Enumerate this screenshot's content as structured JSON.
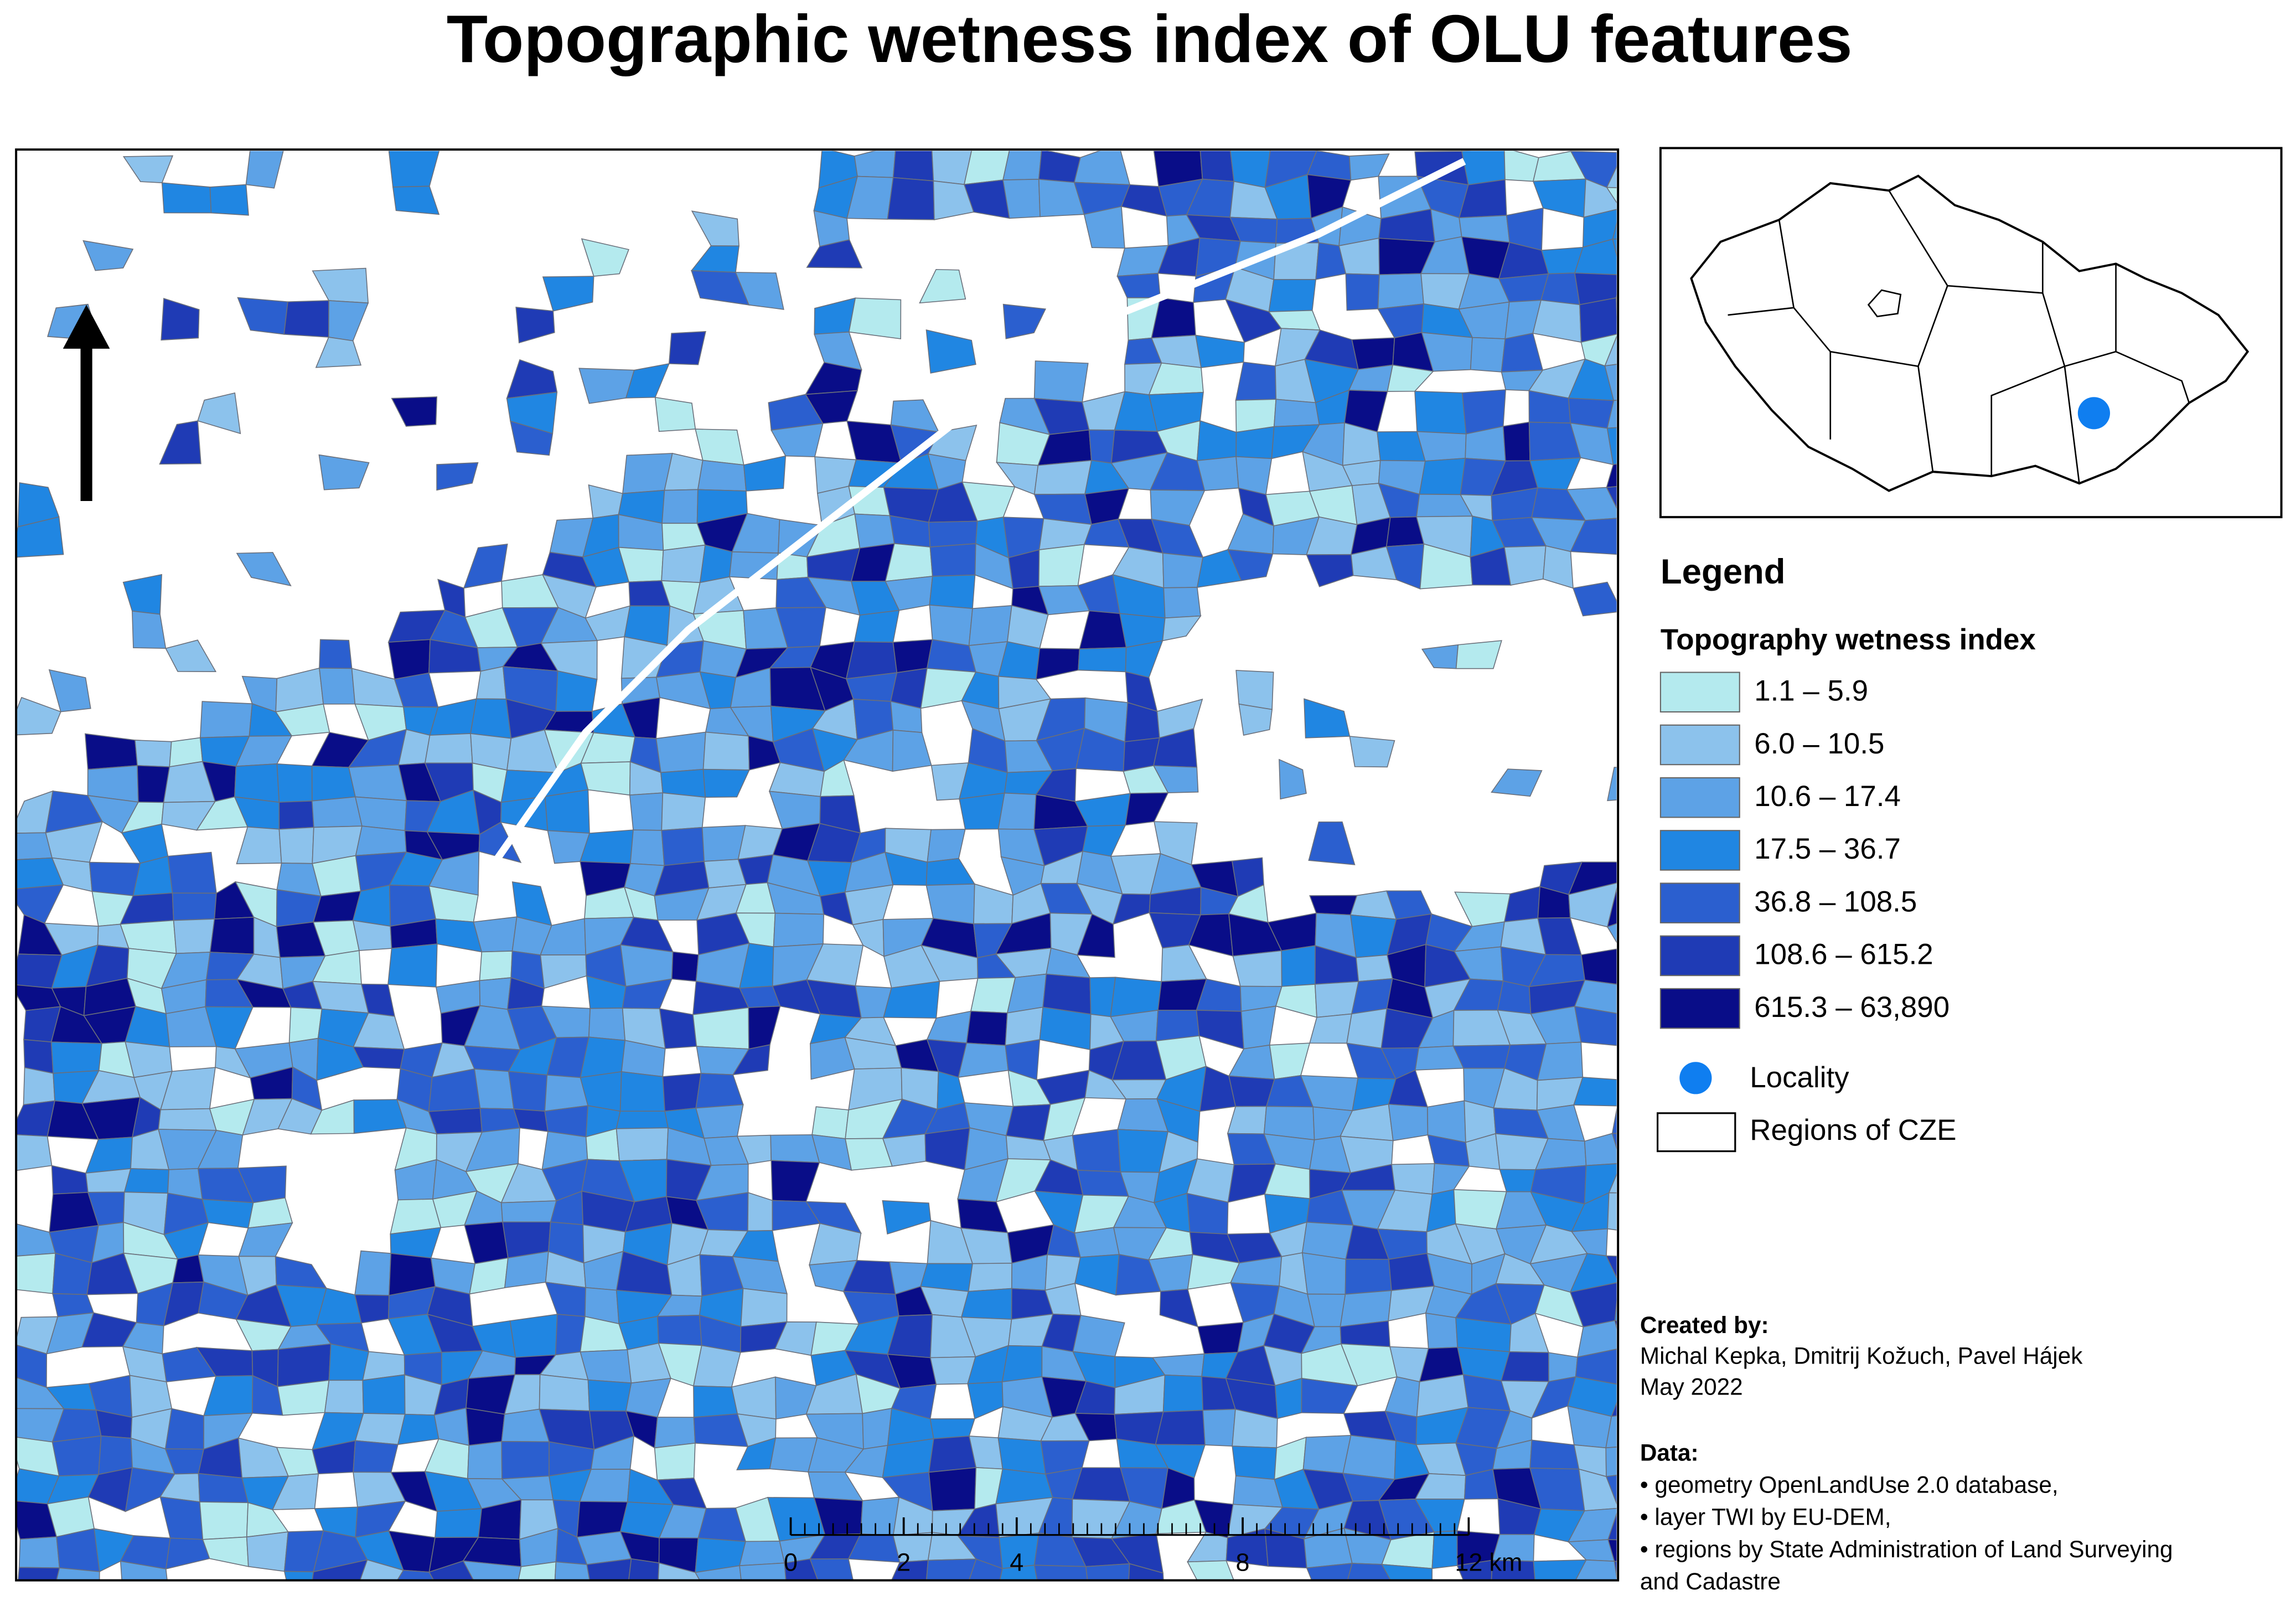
{
  "title": "Topographic wetness index of OLU features",
  "legend": {
    "title": "Legend",
    "subtitle": "Topography wetness index",
    "classes": [
      {
        "label": "1.1 – 5.9",
        "color": "#b4eaee"
      },
      {
        "label": "6.0 – 10.5",
        "color": "#8cc2ec"
      },
      {
        "label": "10.6 – 17.4",
        "color": "#5da2e6"
      },
      {
        "label": "17.5 – 36.7",
        "color": "#2086e2"
      },
      {
        "label": "36.8 – 108.5",
        "color": "#2b5fcf"
      },
      {
        "label": "108.6 – 615.2",
        "color": "#1f3bb5"
      },
      {
        "label": "615.3 – 63,890",
        "color": "#090d88"
      }
    ],
    "locality": {
      "label": "Locality",
      "color": "#0f7ef0"
    },
    "regions": {
      "label": "Regions of CZE"
    }
  },
  "scale_bar": {
    "ticks": [
      0,
      2,
      4,
      8,
      12
    ],
    "unit": "km"
  },
  "credits": {
    "created_title": "Created by:",
    "authors": "Michal Kepka, Dmitrij Kožuch, Pavel Hájek",
    "date": "May 2022",
    "data_title": "Data:",
    "data_lines": [
      "• geometry OpenLandUse 2.0 database,",
      "• layer TWI by EU-DEM,",
      "• regions by State Administration of Land Surveying",
      " and Cadastre"
    ]
  }
}
